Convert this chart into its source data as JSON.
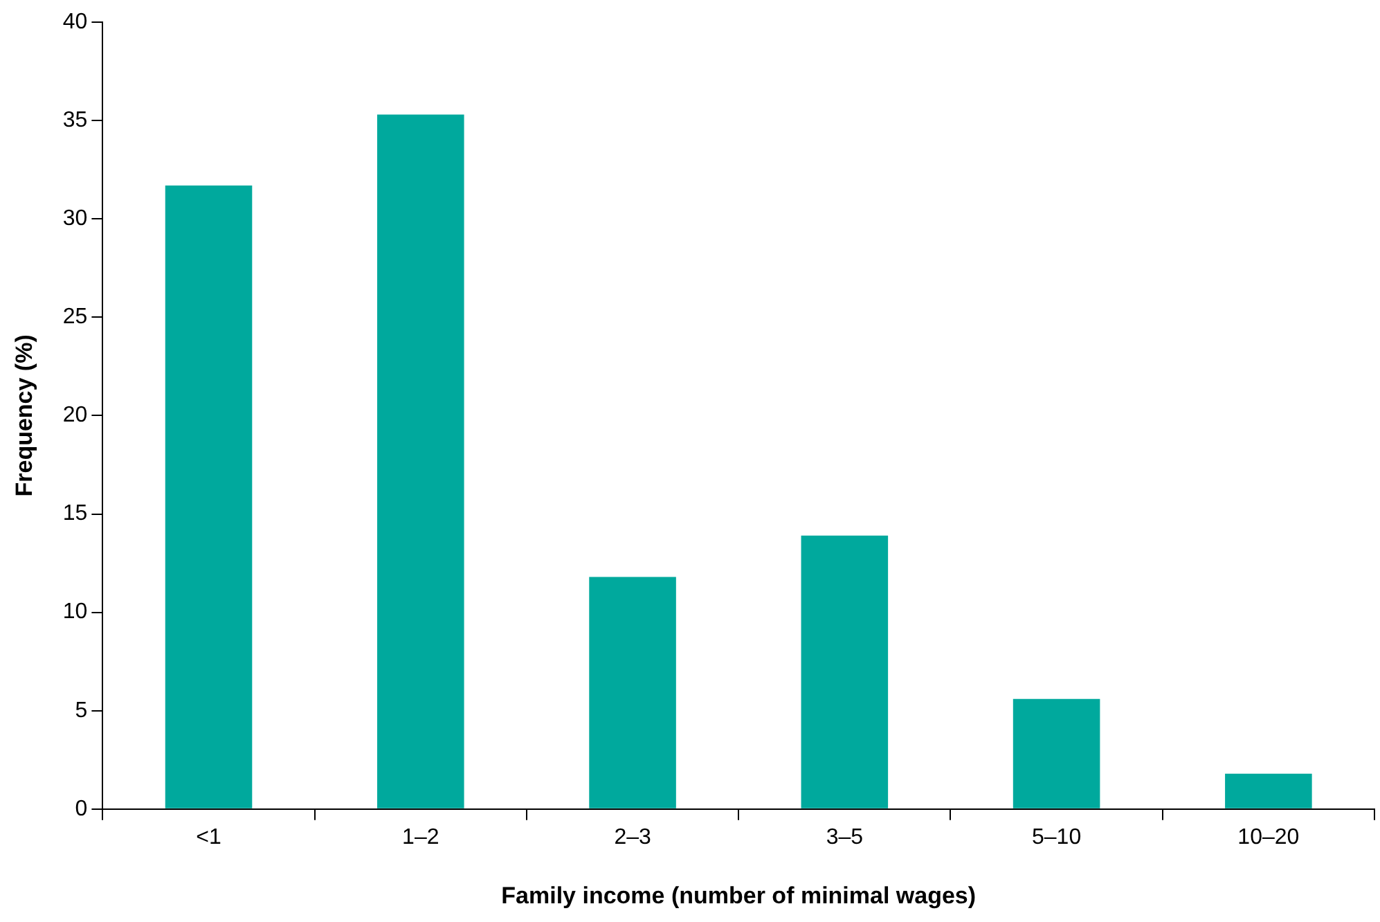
{
  "chart_data": {
    "type": "bar",
    "xlabel": "Family income (number of minimal wages)",
    "ylabel": "Frequency (%)",
    "categories": [
      "<1",
      "1–2",
      "2–3",
      "3–5",
      "5–10",
      "10–20"
    ],
    "values": [
      31.7,
      35.3,
      11.8,
      13.9,
      5.6,
      1.8
    ],
    "color": "#00a99d",
    "ylim": [
      0,
      40
    ],
    "yticks": [
      0,
      5,
      10,
      15,
      20,
      25,
      30,
      35,
      40
    ],
    "grid": false,
    "legend": false
  }
}
